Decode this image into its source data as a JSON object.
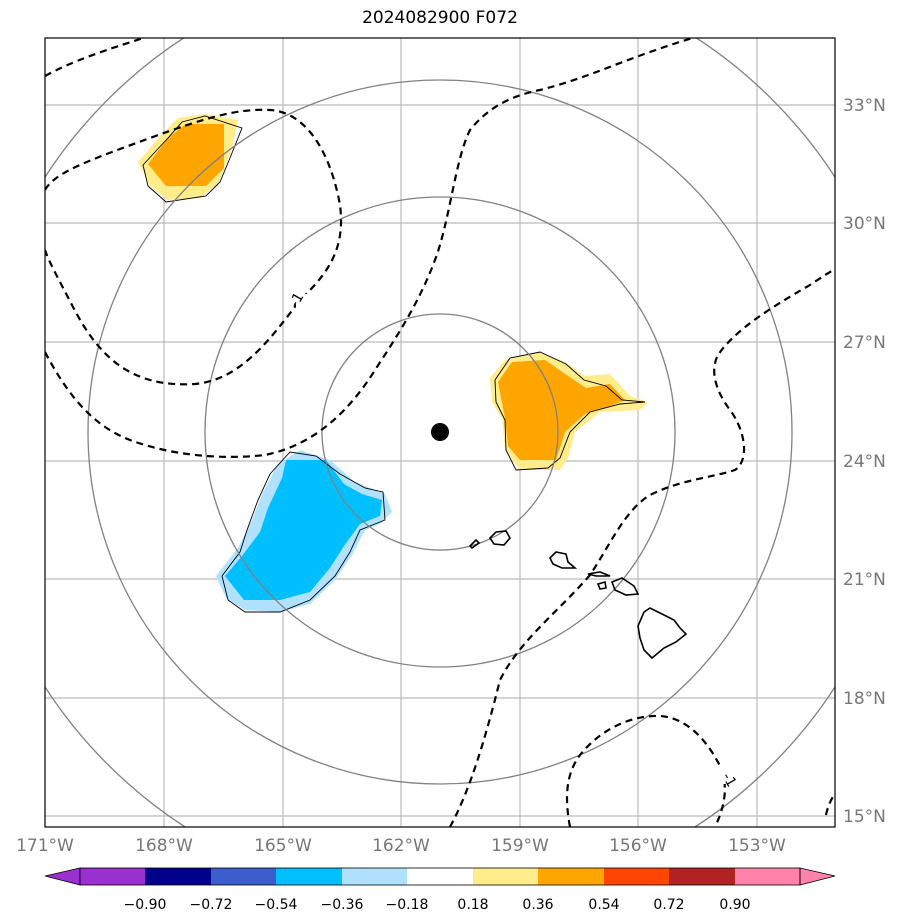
{
  "title": "2024082900 F072",
  "map": {
    "lat_labels": [
      {
        "text": "33°N",
        "lat": 33
      },
      {
        "text": "30°N",
        "lat": 30
      },
      {
        "text": "27°N",
        "lat": 27
      },
      {
        "text": "24°N",
        "lat": 24
      },
      {
        "text": "21°N",
        "lat": 21
      },
      {
        "text": "18°N",
        "lat": 18
      },
      {
        "text": "15°N",
        "lat": 15
      }
    ],
    "lon_labels": [
      {
        "text": "171°W",
        "lon": -171
      },
      {
        "text": "168°W",
        "lon": -168
      },
      {
        "text": "165°W",
        "lon": -165
      },
      {
        "text": "162°W",
        "lon": -162
      },
      {
        "text": "159°W",
        "lon": -159
      },
      {
        "text": "156°W",
        "lon": -156
      },
      {
        "text": "153°W",
        "lon": -153
      }
    ],
    "center_marker": {
      "lon": -161.0,
      "lat": 24.7
    },
    "contour_labels": [
      "-1",
      "-1"
    ]
  },
  "colorbar": {
    "colors": [
      "#9b30d0",
      "#00008b",
      "#3a5fcd",
      "#00bfff",
      "#b0e2ff",
      "#ffffff",
      "#ffec8b",
      "#ffa500",
      "#ff4500",
      "#b22222",
      "#ff82ab"
    ],
    "ticks": [
      "−0.90",
      "−0.72",
      "−0.54",
      "−0.36",
      "−0.18",
      "0.18",
      "0.36",
      "0.54",
      "0.72",
      "0.90"
    ]
  }
}
